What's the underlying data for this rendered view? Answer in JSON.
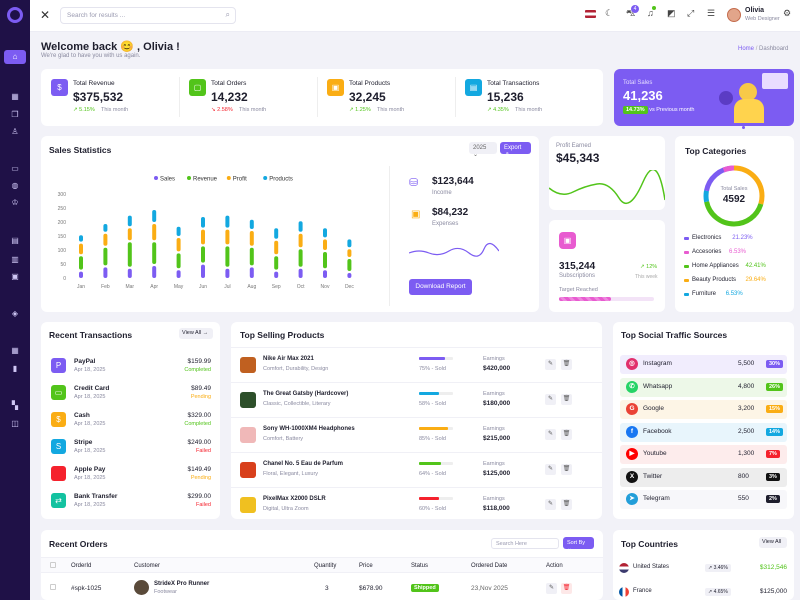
{
  "search": {
    "placeholder": "Search for results ..."
  },
  "user": {
    "name": "Olivia",
    "role": "Web Designer"
  },
  "cart_count": "4",
  "welcome": {
    "title": "Welcome back 😊 , Olivia !",
    "subtitle": "We're glad to have you with us again."
  },
  "breadcrumb": {
    "home": "Home",
    "sep": "/",
    "current": "Dashboard"
  },
  "kpis": [
    {
      "label": "Total Revenue",
      "value": "$375,532",
      "change": "5.15%",
      "period": "This month",
      "dir": "up",
      "color": "#7c5cf2"
    },
    {
      "label": "Total Orders",
      "value": "14,232",
      "change": "2.58%",
      "period": "This month",
      "dir": "down",
      "color": "#52c41a"
    },
    {
      "label": "Total Products",
      "value": "32,245",
      "change": "1.25%",
      "period": "This month",
      "dir": "up",
      "color": "#faad14"
    },
    {
      "label": "Total Transactions",
      "value": "15,236",
      "change": "4.35%",
      "period": "This month",
      "dir": "up",
      "color": "#13a8e0"
    }
  ],
  "total_sales": {
    "label": "Total Sales",
    "value": "41,236",
    "badge": "14.73%",
    "note": "vs Previous month"
  },
  "sales_stats": {
    "title": "Sales Statistics",
    "year": "2025",
    "export": "Export",
    "income_value": "$123,644",
    "income_label": "Income",
    "expenses_value": "$84,232",
    "expenses_label": "Expenses",
    "download": "Download Report"
  },
  "chart_data": {
    "type": "bar",
    "categories": [
      "Jan",
      "Feb",
      "Mar",
      "Apr",
      "May",
      "Jun",
      "Jul",
      "Aug",
      "Sep",
      "Oct",
      "Nov",
      "Dec"
    ],
    "ylim": [
      0,
      300
    ],
    "yticks": [
      0,
      50,
      100,
      150,
      200,
      250,
      300
    ],
    "legend": "top",
    "series": [
      {
        "name": "Sales",
        "color": "#7c5cf2",
        "values": [
          30,
          45,
          40,
          50,
          35,
          55,
          40,
          45,
          30,
          40,
          35,
          25
        ]
      },
      {
        "name": "Revenue",
        "color": "#52c41a",
        "values": [
          55,
          70,
          95,
          85,
          60,
          65,
          80,
          70,
          55,
          70,
          65,
          50
        ]
      },
      {
        "name": "Profit",
        "color": "#faad14",
        "values": [
          45,
          50,
          50,
          65,
          55,
          60,
          60,
          60,
          55,
          55,
          45,
          35
        ]
      },
      {
        "name": "Products",
        "color": "#13a8e0",
        "values": [
          30,
          35,
          45,
          50,
          40,
          45,
          50,
          40,
          45,
          45,
          40,
          35
        ]
      }
    ]
  },
  "profit": {
    "label": "Profit Earned",
    "value": "$45,343"
  },
  "subscriptions": {
    "value": "315,244",
    "label": "Subscriptions",
    "change": "12%",
    "period": "This week",
    "target_label": "Target Reached",
    "target_fraction": 0.55
  },
  "categories": {
    "title": "Top Categories",
    "center_label": "Total Sales",
    "center_value": "4592",
    "items": [
      {
        "name": "Electronics",
        "pct": "21.23%",
        "color": "#7c5cf2"
      },
      {
        "name": "Accesories",
        "pct": "6.53%",
        "color": "#e85bd0"
      },
      {
        "name": "Home Appliances",
        "pct": "42.41%",
        "color": "#52c41a"
      },
      {
        "name": "Beauty Products",
        "pct": "29.64%",
        "color": "#faad14"
      },
      {
        "name": "Furniture",
        "pct": "6.53%",
        "color": "#13a8e0"
      }
    ]
  },
  "transactions": {
    "title": "Recent Transactions",
    "view_all": "View All",
    "items": [
      {
        "name": "PayPal",
        "date": "Apr 18, 2025",
        "amount": "$159.99",
        "status": "Completed",
        "color": "#7c5cf2",
        "status_color": "#52c41a"
      },
      {
        "name": "Credit Card",
        "date": "Apr 18, 2025",
        "amount": "$89.49",
        "status": "Pending",
        "color": "#52c41a",
        "status_color": "#faad14"
      },
      {
        "name": "Cash",
        "date": "Apr 18, 2025",
        "amount": "$329.00",
        "status": "Completed",
        "color": "#faad14",
        "status_color": "#52c41a"
      },
      {
        "name": "Stripe",
        "date": "Apr 18, 2025",
        "amount": "$249.00",
        "status": "Failed",
        "color": "#13a8e0",
        "status_color": "#f5222d"
      },
      {
        "name": "Apple Pay",
        "date": "Apr 18, 2025",
        "amount": "$149.49",
        "status": "Pending",
        "color": "#f5222d",
        "status_color": "#faad14"
      },
      {
        "name": "Bank Transfer",
        "date": "Apr 18, 2025",
        "amount": "$299.00",
        "status": "Failed",
        "color": "#13c2a0",
        "status_color": "#f5222d"
      }
    ]
  },
  "top_products": {
    "title": "Top Selling Products",
    "earnings_label": "Earnings",
    "items": [
      {
        "name": "Nike Air Max 2021",
        "tags": "Comfort, Durability, Design",
        "sold": "75% - Sold",
        "progress": 0.75,
        "bar": "#7c5cf2",
        "earnings": "$420,000",
        "thumb": "#c06020"
      },
      {
        "name": "The Great Gatsby (Hardcover)",
        "tags": "Classic, Collectible, Literary",
        "sold": "58% - Sold",
        "progress": 0.58,
        "bar": "#13a8e0",
        "earnings": "$180,000",
        "thumb": "#2d4f2a"
      },
      {
        "name": "Sony WH-1000XM4 Headphones",
        "tags": "Comfort, Battery",
        "sold": "85% - Sold",
        "progress": 0.85,
        "bar": "#faad14",
        "earnings": "$215,000",
        "thumb": "#f0b8b8"
      },
      {
        "name": "Chanel No. 5 Eau de Parfum",
        "tags": "Floral, Elegant, Luxury",
        "sold": "64% - Sold",
        "progress": 0.64,
        "bar": "#52c41a",
        "earnings": "$125,000",
        "thumb": "#d8401c"
      },
      {
        "name": "PixelMax X2000 DSLR",
        "tags": "Digital, Ultra Zoom",
        "sold": "60% - Sold",
        "progress": 0.6,
        "bar": "#f5222d",
        "earnings": "$118,000",
        "thumb": "#f0c020"
      }
    ]
  },
  "social": {
    "title": "Top Social Traffic Sources",
    "items": [
      {
        "name": "Instagram",
        "value": "5,500",
        "badge": "30%",
        "color": "#e1306c",
        "bg": "#f1edfd",
        "badge_color": "#7c5cf2"
      },
      {
        "name": "Whatsapp",
        "value": "4,800",
        "badge": "26%",
        "color": "#25d366",
        "bg": "#edf8e8",
        "badge_color": "#52c41a"
      },
      {
        "name": "Google",
        "value": "3,200",
        "badge": "15%",
        "color": "#ea4335",
        "bg": "#fdf5e6",
        "badge_color": "#faad14"
      },
      {
        "name": "Facebook",
        "value": "2,500",
        "badge": "14%",
        "color": "#1877f2",
        "bg": "#e8f5fc",
        "badge_color": "#13a8e0"
      },
      {
        "name": "Youtube",
        "value": "1,300",
        "badge": "7%",
        "color": "#ff0000",
        "bg": "#fdecec",
        "badge_color": "#f5222d"
      },
      {
        "name": "Twitter",
        "value": "800",
        "badge": "3%",
        "color": "#111111",
        "bg": "#ededed",
        "badge_color": "#111111"
      },
      {
        "name": "Telegram",
        "value": "550",
        "badge": "2%",
        "color": "#229ed9",
        "bg": "#f7f7fa",
        "badge_color": "#1e1e2d"
      }
    ]
  },
  "orders": {
    "title": "Recent Orders",
    "search_placeholder": "Search Here",
    "sort": "Sort By",
    "headers": [
      "OrderId",
      "Customer",
      "Quantity",
      "Price",
      "Status",
      "Ordered Date",
      "Action"
    ],
    "row": {
      "id": "#spk-1025",
      "customer": "StrideX Pro Runner",
      "category": "Footwear",
      "qty": "3",
      "price": "$678.90",
      "status": "Shipped",
      "date": "23,Nov 2025"
    }
  },
  "countries": {
    "title": "Top Countries",
    "view_all": "View All",
    "items": [
      {
        "name": "United States",
        "change": "3.46%",
        "value": "$312,546",
        "value_color": "#52c41a"
      },
      {
        "name": "France",
        "change": "4.65%",
        "value": "$125,000",
        "value_color": "#1e1e2d"
      }
    ]
  }
}
